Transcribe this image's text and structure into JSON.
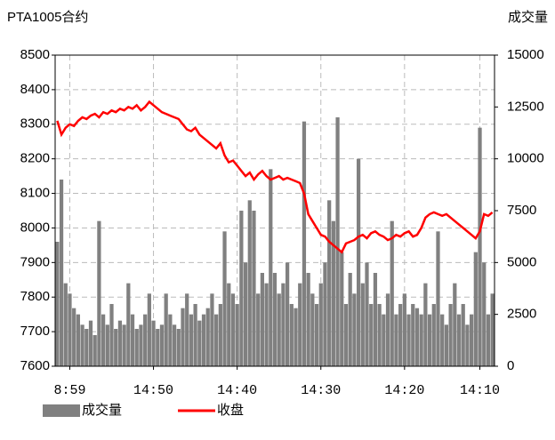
{
  "chart_data": {
    "type": "bar_line",
    "title": "PTA1005合约",
    "y2label": "成交量",
    "categories": [
      null,
      null,
      null,
      "8:59",
      null,
      null,
      null,
      null,
      null,
      null,
      null,
      null,
      null,
      null,
      null,
      null,
      null,
      null,
      null,
      null,
      null,
      null,
      null,
      "14:50",
      null,
      null,
      null,
      null,
      null,
      null,
      null,
      null,
      null,
      null,
      null,
      null,
      null,
      null,
      null,
      null,
      null,
      null,
      null,
      "14:40",
      null,
      null,
      null,
      null,
      null,
      null,
      null,
      null,
      null,
      null,
      null,
      null,
      null,
      null,
      null,
      null,
      null,
      null,
      null,
      "14:30",
      null,
      null,
      null,
      null,
      null,
      null,
      null,
      null,
      null,
      null,
      null,
      null,
      null,
      null,
      null,
      null,
      null,
      null,
      null,
      "14:20",
      null,
      null,
      null,
      null,
      null,
      null,
      null,
      null,
      null,
      null,
      null,
      null,
      null,
      null,
      null,
      null,
      null,
      "14:10",
      null,
      null,
      null
    ],
    "series": [
      {
        "name": "成交量",
        "color": "#808080",
        "axis": "y2",
        "values": [
          6000,
          9000,
          4000,
          3500,
          2800,
          2500,
          2000,
          1800,
          2200,
          1500,
          7000,
          2500,
          2000,
          3000,
          1800,
          2200,
          2000,
          4000,
          2500,
          1800,
          2000,
          2500,
          3500,
          2200,
          1800,
          2000,
          3500,
          2500,
          2000,
          1800,
          2800,
          3500,
          2500,
          3000,
          2200,
          2500,
          2800,
          3500,
          2500,
          3000,
          6500,
          4000,
          3500,
          3000,
          7500,
          5000,
          8000,
          7500,
          3500,
          4500,
          4000,
          9500,
          4500,
          3500,
          4000,
          5000,
          3000,
          2800,
          4000,
          11800,
          4500,
          3500,
          3000,
          4000,
          5000,
          8000,
          7000,
          12000,
          5500,
          3000,
          4500,
          3500,
          10000,
          4000,
          5000,
          3000,
          4500,
          3000,
          2500,
          3500,
          7000,
          2500,
          3000,
          3500,
          2500,
          3000,
          2800,
          2500,
          4000,
          2500,
          3000,
          6500,
          2500,
          2000,
          3000,
          4000,
          2500,
          3000,
          2000,
          2500,
          5500,
          11500,
          5000,
          2500,
          3500
        ]
      },
      {
        "name": "收盘",
        "color": "#ff0000",
        "values": [
          8310,
          8270,
          8290,
          8300,
          8295,
          8310,
          8320,
          8315,
          8325,
          8330,
          8320,
          8335,
          8330,
          8340,
          8335,
          8345,
          8340,
          8350,
          8345,
          8355,
          8340,
          8350,
          8365,
          8355,
          8345,
          8335,
          8330,
          8325,
          8320,
          8315,
          8300,
          8285,
          8280,
          8290,
          8270,
          8260,
          8250,
          8240,
          8230,
          8245,
          8210,
          8190,
          8195,
          8180,
          8165,
          8150,
          8160,
          8140,
          8155,
          8165,
          8150,
          8140,
          8145,
          8150,
          8140,
          8145,
          8140,
          8135,
          8130,
          8100,
          8040,
          8020,
          8000,
          7980,
          7975,
          7960,
          7950,
          7940,
          7930,
          7955,
          7960,
          7965,
          7975,
          7980,
          7970,
          7985,
          7990,
          7980,
          7975,
          7965,
          7970,
          7980,
          7975,
          7985,
          7990,
          7975,
          7980,
          8000,
          8030,
          8040,
          8045,
          8040,
          8035,
          8040,
          8030,
          8020,
          8010,
          8000,
          7990,
          7980,
          7970,
          7990,
          8040,
          8035,
          8045
        ]
      }
    ],
    "ylim": [
      7600,
      8500
    ],
    "yticks": [
      7600,
      7700,
      7800,
      7900,
      8000,
      8100,
      8200,
      8300,
      8400,
      8500
    ],
    "y2lim": [
      0,
      15000
    ],
    "y2ticks": [
      0,
      2500,
      5000,
      7500,
      10000,
      12500,
      15000
    ],
    "grid": true
  }
}
